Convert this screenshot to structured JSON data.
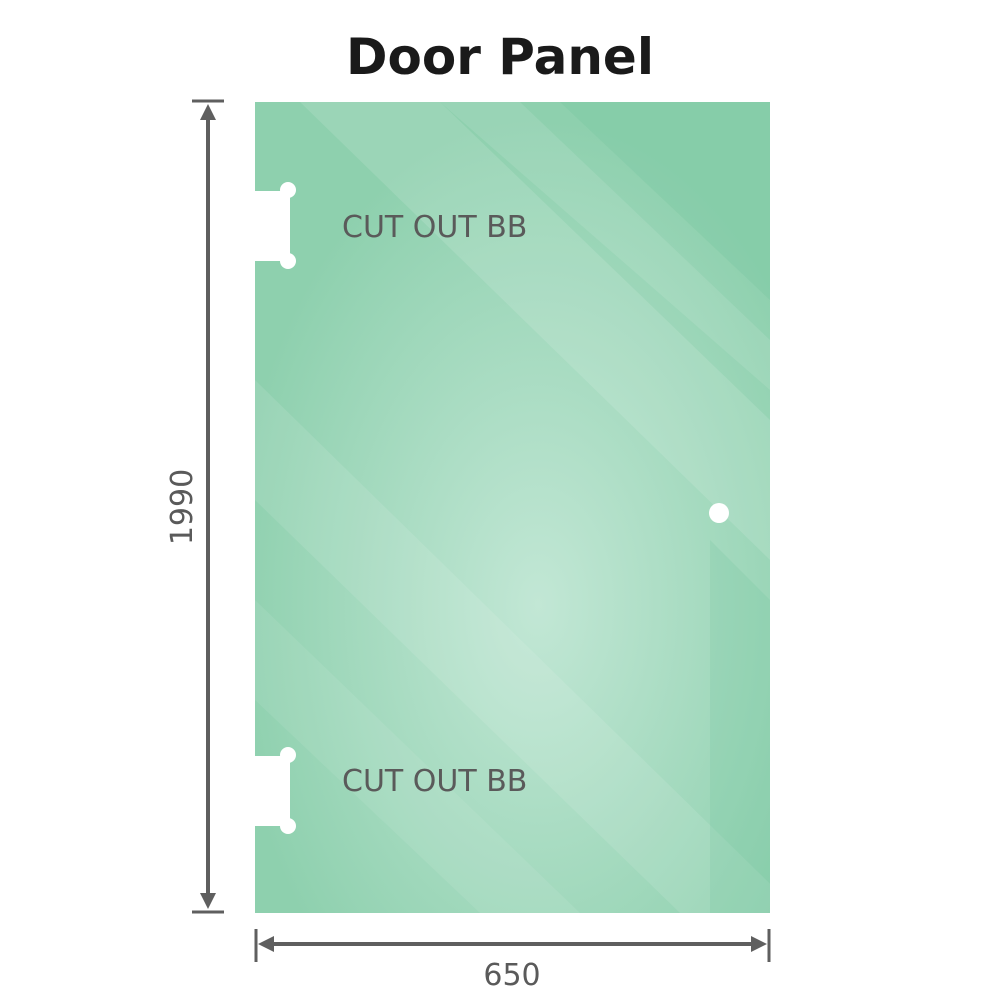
{
  "title": "Door Panel",
  "dimensions": {
    "height": "1990",
    "width": "650"
  },
  "cutouts": [
    {
      "label": "CUT OUT BB"
    },
    {
      "label": "CUT OUT BB"
    }
  ],
  "colors": {
    "glass": "#8fd1b0",
    "glass_light": "#bfe6d3",
    "dimension_line": "#5f5f5f",
    "cutout_label": "#555555"
  }
}
